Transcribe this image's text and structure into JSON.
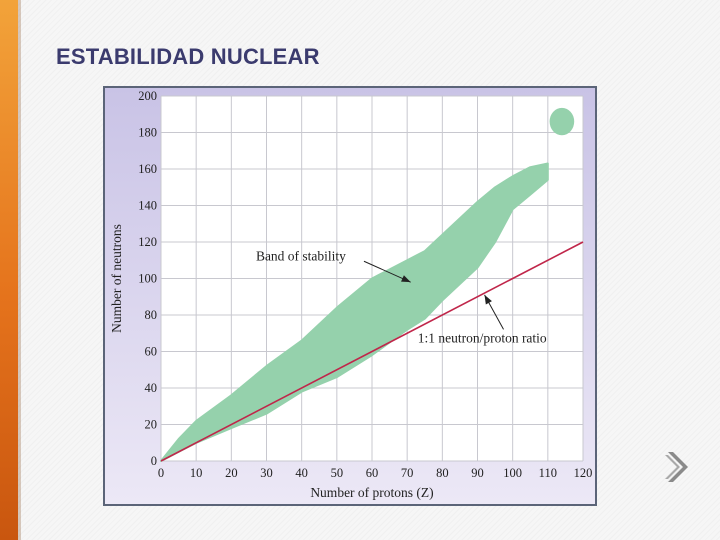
{
  "slide": {
    "title": "ESTABILIDAD NUCLEAR"
  },
  "colors": {
    "accent": "#e5731c",
    "title": "#3b3b6e",
    "band": "#95d1ac",
    "ratio_line": "#c0264a",
    "plot_bg_top": "#c9c3e6",
    "plot_bg_bottom": "#ece8f6",
    "next_icon": "#8a8a8a"
  },
  "nav": {
    "next_icon": "chevron-right-icon"
  },
  "chart_data": {
    "type": "area",
    "xlabel": "Number of protons (Z)",
    "ylabel": "Number of neutrons",
    "xlim": [
      0,
      120
    ],
    "ylim": [
      0,
      200
    ],
    "xticks": [
      0,
      10,
      20,
      30,
      40,
      50,
      60,
      70,
      80,
      90,
      100,
      110,
      120
    ],
    "yticks": [
      0,
      20,
      40,
      60,
      80,
      100,
      120,
      140,
      160,
      180,
      200
    ],
    "grid": true,
    "series": [
      {
        "name": "Band of stability",
        "kind": "band",
        "x": [
          0,
          5,
          10,
          20,
          30,
          40,
          50,
          60,
          70,
          75,
          80,
          90,
          95,
          100,
          105,
          110
        ],
        "upper": [
          0,
          12,
          22,
          36,
          52,
          66,
          84,
          100,
          110,
          115,
          124,
          142,
          150,
          156,
          161,
          163
        ],
        "lower": [
          0,
          5,
          10,
          18,
          26,
          38,
          46,
          58,
          72,
          78,
          88,
          106,
          120,
          138,
          146,
          154
        ]
      },
      {
        "name": "Band of stability",
        "kind": "island",
        "center": [
          114,
          186
        ],
        "span_x": 7,
        "span_y": 15
      },
      {
        "name": "1:1 neutron/proton ratio",
        "kind": "line",
        "x": [
          0,
          120
        ],
        "y": [
          0,
          120
        ]
      }
    ],
    "annotations": [
      {
        "text": "Band of stability",
        "text_at": [
          27,
          110
        ],
        "arrow_to": [
          71,
          98
        ]
      },
      {
        "text": "1:1 neutron/proton ratio",
        "text_at": [
          73,
          65
        ],
        "arrow_to": [
          92,
          91
        ]
      }
    ]
  }
}
